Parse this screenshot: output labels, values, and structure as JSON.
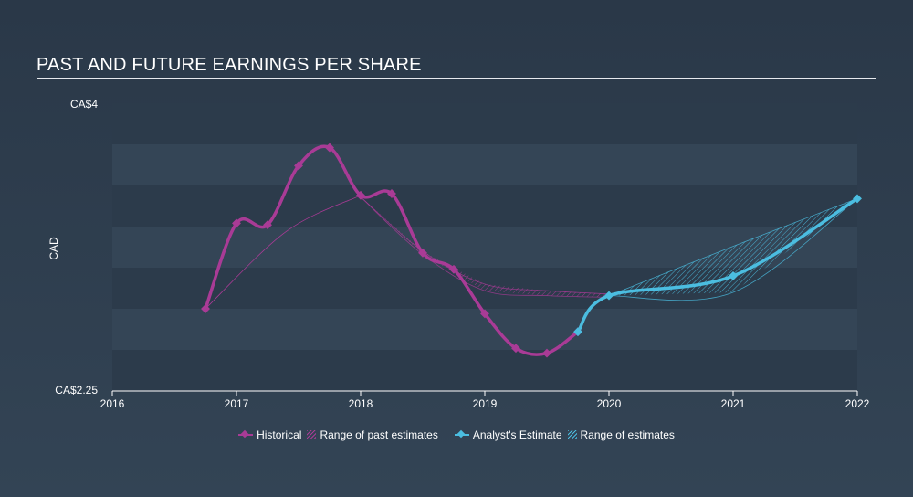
{
  "chart_data": {
    "type": "line",
    "title": "PAST AND FUTURE EARNINGS PER SHARE",
    "ylabel": "CAD",
    "xlabel": "",
    "xlim": [
      2016,
      2022
    ],
    "ylim": [
      2.25,
      4.0
    ],
    "y_tick_labels": [
      "CA$4",
      "CA$2.25"
    ],
    "x_ticks": [
      2016,
      2017,
      2018,
      2019,
      2020,
      2021,
      2022
    ],
    "x_tick_labels": [
      "2016",
      "2017",
      "2018",
      "2019",
      "2020",
      "2021",
      "2022"
    ],
    "series": [
      {
        "name": "Historical",
        "color": "#a93b96",
        "points": [
          [
            2016.75,
            2.75
          ],
          [
            2017.0,
            3.27
          ],
          [
            2017.25,
            3.26
          ],
          [
            2017.5,
            3.62
          ],
          [
            2017.75,
            3.73
          ],
          [
            2018.0,
            3.44
          ],
          [
            2018.25,
            3.45
          ],
          [
            2018.5,
            3.09
          ],
          [
            2018.75,
            2.99
          ],
          [
            2019.0,
            2.72
          ],
          [
            2019.25,
            2.51
          ],
          [
            2019.5,
            2.48
          ],
          [
            2019.75,
            2.61
          ]
        ]
      },
      {
        "name": "Analyst's Estimate",
        "color": "#4bbde0",
        "points": [
          [
            2019.75,
            2.61
          ],
          [
            2020.0,
            2.83
          ],
          [
            2021.0,
            2.95
          ],
          [
            2022.0,
            3.42
          ]
        ]
      }
    ],
    "ranges": [
      {
        "name": "Range of past estimates",
        "color": "#a93b96",
        "low": [
          [
            2018.0,
            3.43
          ],
          [
            2018.5,
            3.08
          ],
          [
            2019.0,
            2.86
          ],
          [
            2019.5,
            2.83
          ],
          [
            2020.0,
            2.82
          ]
        ],
        "high": [
          [
            2018.0,
            3.43
          ],
          [
            2018.5,
            3.1
          ],
          [
            2019.0,
            2.9
          ],
          [
            2019.5,
            2.86
          ],
          [
            2020.0,
            2.84
          ]
        ]
      },
      {
        "name": "Range of estimates",
        "color": "#4bbde0",
        "low": [
          [
            2020.0,
            2.83
          ],
          [
            2021.0,
            2.85
          ],
          [
            2022.0,
            3.42
          ]
        ],
        "high": [
          [
            2020.0,
            2.83
          ],
          [
            2021.0,
            3.13
          ],
          [
            2022.0,
            3.42
          ]
        ]
      }
    ],
    "trend_curve": {
      "color": "#a93b96",
      "points": [
        [
          2016.75,
          2.75
        ],
        [
          2017.4,
          3.22
        ],
        [
          2018.0,
          3.44
        ]
      ]
    },
    "legend": [
      {
        "label": "Historical",
        "kind": "line",
        "color": "#a93b96"
      },
      {
        "label": "Range of past estimates",
        "kind": "hatch",
        "color": "#a93b96"
      },
      {
        "label": "Analyst's Estimate",
        "kind": "line",
        "color": "#4bbde0"
      },
      {
        "label": "Range of estimates",
        "kind": "hatch",
        "color": "#4bbde0"
      }
    ]
  }
}
